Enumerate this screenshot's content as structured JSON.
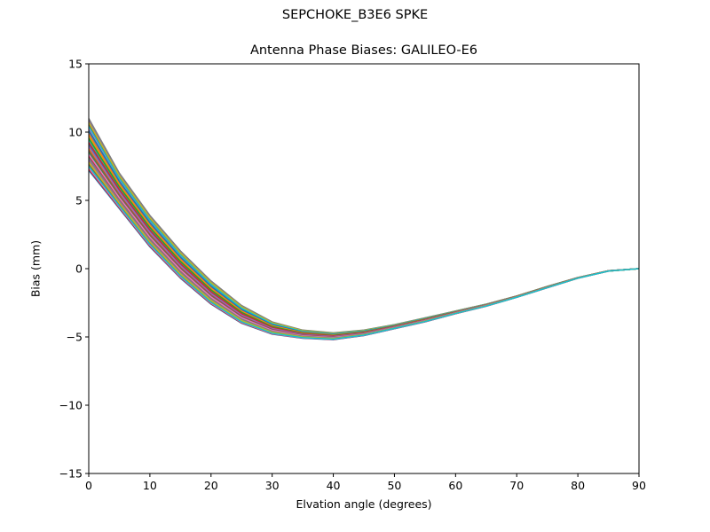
{
  "figure": {
    "suptitle": "SEPCHOKE_B3E6   SPKE",
    "title": "Antenna Phase Biases: GALILEO-E6"
  },
  "chart_data": {
    "type": "line",
    "title": "Antenna Phase Biases: GALILEO-E6",
    "suptitle": "SEPCHOKE_B3E6   SPKE",
    "xlabel": "Elvation angle (degrees)",
    "ylabel": "Bias (mm)",
    "xlim": [
      0,
      90
    ],
    "ylim": [
      -15,
      15
    ],
    "xticks": [
      0,
      10,
      20,
      30,
      40,
      50,
      60,
      70,
      80,
      90
    ],
    "yticks": [
      -15,
      -10,
      -5,
      0,
      5,
      10,
      15
    ],
    "yticklabels": [
      "−15",
      "−10",
      "−5",
      "0",
      "5",
      "10",
      "15"
    ],
    "grid": false,
    "legend": null,
    "x": [
      0,
      5,
      10,
      15,
      20,
      25,
      30,
      35,
      40,
      45,
      50,
      55,
      60,
      65,
      70,
      75,
      80,
      85,
      90
    ],
    "series_envelope": {
      "upper": [
        11.0,
        7.0,
        3.9,
        1.3,
        -0.9,
        -2.7,
        -3.9,
        -4.5,
        -4.7,
        -4.5,
        -4.1,
        -3.6,
        -3.1,
        -2.6,
        -2.0,
        -1.3,
        -0.65,
        -0.15,
        0.0
      ],
      "lower": [
        7.2,
        4.4,
        1.6,
        -0.7,
        -2.6,
        -4.0,
        -4.8,
        -5.1,
        -5.2,
        -4.9,
        -4.4,
        -3.9,
        -3.3,
        -2.75,
        -2.1,
        -1.4,
        -0.7,
        -0.18,
        0.0
      ]
    },
    "series_count_estimate": 40,
    "series_note": "Many overlapping per-azimuth curves forming a band; all converge to 0 at 90 degrees.",
    "colors": [
      "#1f77b4",
      "#ff7f0e",
      "#2ca02c",
      "#d62728",
      "#9467bd",
      "#8c564b",
      "#e377c2",
      "#7f7f7f",
      "#bcbd22",
      "#17becf"
    ]
  }
}
